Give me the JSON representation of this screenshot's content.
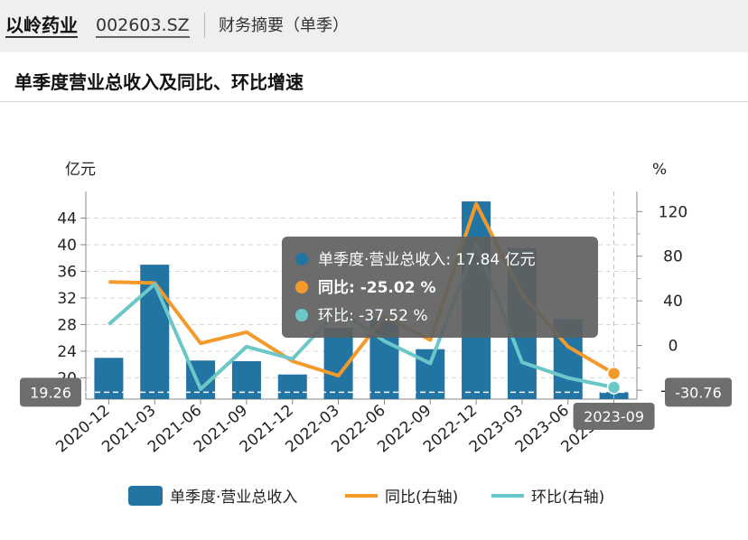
{
  "header": {
    "company": "以岭药业",
    "code": "002603.SZ",
    "section": "财务摘要（单季）"
  },
  "chart_title": "单季度营业总收入及同比、环比增速",
  "colors": {
    "bar": "#2275a3",
    "yoy": "#f39a2b",
    "qoq": "#6cc8c8",
    "tooltip_bg": "#5f5f5f"
  },
  "crosshair": {
    "left_value": "19.26",
    "right_value": "-30.76",
    "x_value": "2023-09"
  },
  "tooltip": {
    "rows": [
      {
        "label": "单季度·营业总收入",
        "value": "17.84",
        "unit": "亿元",
        "bold": false,
        "color": "#2275a3"
      },
      {
        "label": "同比",
        "value": "-25.02",
        "unit": "%",
        "bold": true,
        "color": "#f39a2b"
      },
      {
        "label": "环比",
        "value": "-37.52",
        "unit": "%",
        "bold": false,
        "color": "#6cc8c8"
      }
    ]
  },
  "chart_data": {
    "type": "bar",
    "title": "单季度营业总收入及同比、环比增速",
    "categories": [
      "2020-12",
      "2021-03",
      "2021-06",
      "2021-09",
      "2021-12",
      "2022-03",
      "2022-06",
      "2022-09",
      "2022-12",
      "2023-03",
      "2023-06",
      "2023-09"
    ],
    "ylabel_left": "亿元",
    "ylabel_right": "%",
    "ylim_left": [
      16.8,
      48
    ],
    "yticks_left": [
      20,
      24,
      28,
      32,
      36,
      40,
      44
    ],
    "ylim_right": [
      -48,
      138
    ],
    "yticks_right": [
      -40,
      0,
      40,
      80,
      120
    ],
    "series": [
      {
        "name": "单季度·营业总收入",
        "type": "bar",
        "axis": "left",
        "values": [
          23.0,
          37.0,
          22.6,
          22.5,
          20.5,
          27.5,
          29.0,
          24.3,
          46.5,
          39.5,
          28.8,
          17.84
        ]
      },
      {
        "name": "同比(右轴)",
        "type": "line",
        "axis": "right",
        "values": [
          57,
          56,
          2,
          12,
          -14,
          -27,
          26,
          5,
          127,
          46,
          -1,
          -25.02
        ]
      },
      {
        "name": "环比(右轴)",
        "type": "line",
        "axis": "right",
        "values": [
          19,
          55,
          -39,
          -1,
          -12,
          32,
          4,
          -16,
          91,
          -15,
          -29,
          -37.52
        ]
      }
    ],
    "legend": [
      "单季度·营业总收入",
      "同比(右轴)",
      "环比(右轴)"
    ],
    "legend_position": "bottom",
    "grid": true
  }
}
